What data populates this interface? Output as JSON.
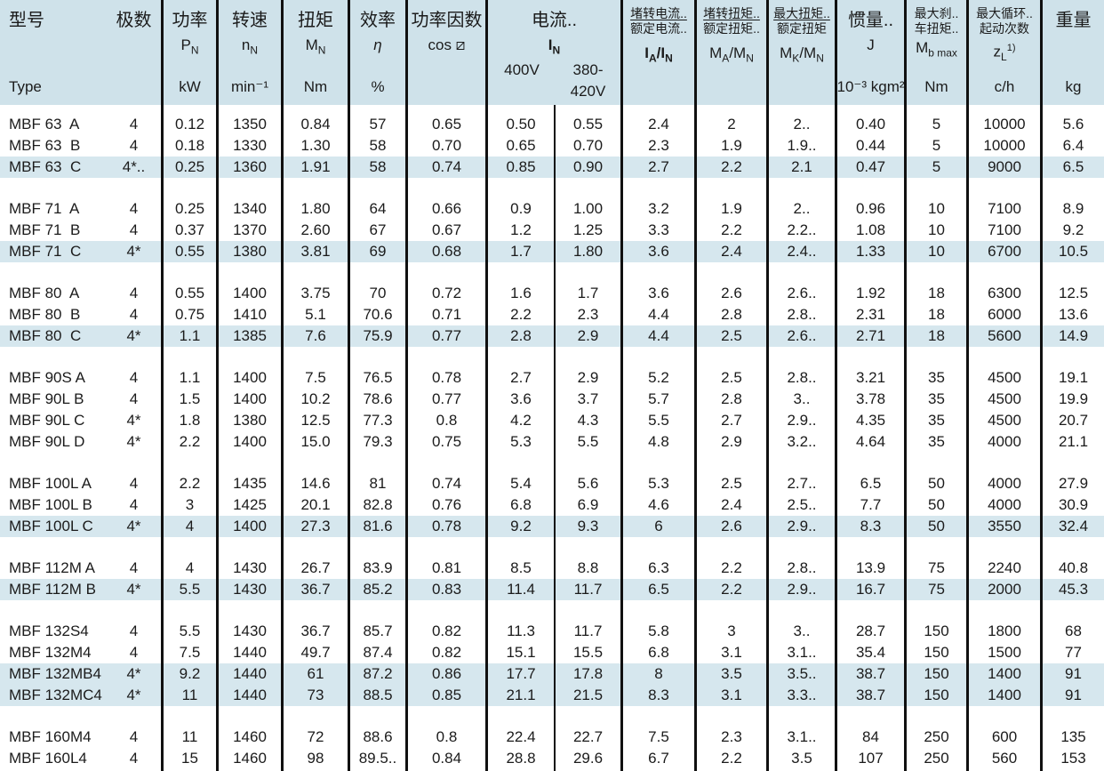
{
  "colors": {
    "header_background": "#cfe2ea",
    "row_highlight": "#d6e7ee",
    "grid_line": "#101010",
    "text": "#1b1b1b"
  },
  "table": {
    "header": {
      "type": {
        "zh": "型号",
        "en": "Type"
      },
      "poles": {
        "zh": "极数"
      },
      "power": {
        "zh": "功率",
        "sym": [
          [
            "P",
            0
          ],
          [
            "N",
            1
          ]
        ],
        "unit": "kW"
      },
      "speed": {
        "zh": "转速",
        "sym": [
          [
            "n",
            0
          ],
          [
            "N",
            1
          ]
        ],
        "unit": "min⁻¹"
      },
      "torque": {
        "zh": "扭矩",
        "sym": [
          [
            "M",
            0
          ],
          [
            "N",
            1
          ]
        ],
        "unit": "Nm"
      },
      "efficiency": {
        "zh": "效率",
        "sym": [
          [
            "η",
            0
          ]
        ],
        "unit": "%"
      },
      "power_factor": {
        "zh": "功率因数",
        "sym": [
          [
            "cos ⧄",
            0
          ]
        ],
        "unit": ""
      },
      "current": {
        "zh": "电流..",
        "sym": [
          [
            "I",
            0
          ],
          [
            "N",
            1
          ]
        ],
        "voltage_1": "400V",
        "voltage_2": "380-420V"
      },
      "locked_rotor_current": {
        "zh_num": "堵转电流..",
        "zh_den": "额定电流..",
        "sym": [
          [
            "I",
            0
          ],
          [
            "A",
            1
          ],
          [
            "/I",
            0
          ],
          [
            "N",
            1
          ]
        ]
      },
      "locked_rotor_torque": {
        "zh_num": "堵转扭矩..",
        "zh_den": "额定扭矩..",
        "sym": [
          [
            "M",
            0
          ],
          [
            "A",
            1
          ],
          [
            "/M",
            0
          ],
          [
            "N",
            1
          ]
        ]
      },
      "breakdown_torque": {
        "zh_num": "最大扭矩..",
        "zh_den": "额定扭矩",
        "sym": [
          [
            "M",
            0
          ],
          [
            "K",
            1
          ],
          [
            "/M",
            0
          ],
          [
            "N",
            1
          ]
        ]
      },
      "inertia": {
        "zh": "惯量..",
        "sym": [
          [
            "J",
            0
          ]
        ],
        "unit": "10⁻³ kgm²"
      },
      "brake_torque": {
        "zh_1": "最大刹..",
        "zh_2": "车扭矩..",
        "sym": [
          [
            "M",
            0
          ],
          [
            "b max",
            1
          ]
        ],
        "unit": "Nm"
      },
      "starts_per_hour": {
        "zh_1": "最大循环..",
        "zh_2": "起动次数",
        "sym": [
          [
            "z",
            0
          ],
          [
            "L",
            1
          ],
          [
            "1)",
            2
          ]
        ],
        "unit": "c/h"
      },
      "weight": {
        "zh": "重量",
        "unit": "kg"
      }
    },
    "groups": [
      {
        "rows": [
          {
            "highlight": false,
            "cells": [
              "MBF 63  A",
              "4",
              "0.12",
              "1350",
              "0.84",
              "57",
              "0.65",
              "0.50",
              "0.55",
              "2.4",
              "2",
              "2..",
              "0.40",
              "5",
              "10000",
              "5.6"
            ]
          },
          {
            "highlight": false,
            "cells": [
              "MBF 63  B",
              "4",
              "0.18",
              "1330",
              "1.30",
              "58",
              "0.70",
              "0.65",
              "0.70",
              "2.3",
              "1.9",
              "1.9..",
              "0.44",
              "5",
              "10000",
              "6.4"
            ]
          },
          {
            "highlight": true,
            "cells": [
              "MBF 63  C",
              "4*..",
              "0.25",
              "1360",
              "1.91",
              "58",
              "0.74",
              "0.85",
              "0.90",
              "2.7",
              "2.2",
              "2.1",
              "0.47",
              "5",
              "9000",
              "6.5"
            ]
          }
        ]
      },
      {
        "rows": [
          {
            "highlight": false,
            "cells": [
              "MBF 71  A",
              "4",
              "0.25",
              "1340",
              "1.80",
              "64",
              "0.66",
              "0.9",
              "1.00",
              "3.2",
              "1.9",
              "2..",
              "0.96",
              "10",
              "7100",
              "8.9"
            ]
          },
          {
            "highlight": false,
            "cells": [
              "MBF 71  B",
              "4",
              "0.37",
              "1370",
              "2.60",
              "67",
              "0.67",
              "1.2",
              "1.25",
              "3.3",
              "2.2",
              "2.2..",
              "1.08",
              "10",
              "7100",
              "9.2"
            ]
          },
          {
            "highlight": true,
            "cells": [
              "MBF 71  C",
              "4*",
              "0.55",
              "1380",
              "3.81",
              "69",
              "0.68",
              "1.7",
              "1.80",
              "3.6",
              "2.4",
              "2.4..",
              "1.33",
              "10",
              "6700",
              "10.5"
            ]
          }
        ]
      },
      {
        "rows": [
          {
            "highlight": false,
            "cells": [
              "MBF 80  A",
              "4",
              "0.55",
              "1400",
              "3.75",
              "70",
              "0.72",
              "1.6",
              "1.7",
              "3.6",
              "2.6",
              "2.6..",
              "1.92",
              "18",
              "6300",
              "12.5"
            ]
          },
          {
            "highlight": false,
            "cells": [
              "MBF 80  B",
              "4",
              "0.75",
              "1410",
              "5.1",
              "70.6",
              "0.71",
              "2.2",
              "2.3",
              "4.4",
              "2.8",
              "2.8..",
              "2.31",
              "18",
              "6000",
              "13.6"
            ]
          },
          {
            "highlight": true,
            "cells": [
              "MBF 80  C",
              "4*",
              "1.1",
              "1385",
              "7.6",
              "75.9",
              "0.77",
              "2.8",
              "2.9",
              "4.4",
              "2.5",
              "2.6..",
              "2.71",
              "18",
              "5600",
              "14.9"
            ]
          }
        ]
      },
      {
        "rows": [
          {
            "highlight": false,
            "cells": [
              "MBF 90S A",
              "4",
              "1.1",
              "1400",
              "7.5",
              "76.5",
              "0.78",
              "2.7",
              "2.9",
              "5.2",
              "2.5",
              "2.8..",
              "3.21",
              "35",
              "4500",
              "19.1"
            ]
          },
          {
            "highlight": false,
            "cells": [
              "MBF 90L B",
              "4",
              "1.5",
              "1400",
              "10.2",
              "78.6",
              "0.77",
              "3.6",
              "3.7",
              "5.7",
              "2.8",
              "3..",
              "3.78",
              "35",
              "4500",
              "19.9"
            ]
          },
          {
            "highlight": false,
            "cells": [
              "MBF 90L C",
              "4*",
              "1.8",
              "1380",
              "12.5",
              "77.3",
              "0.8",
              "4.2",
              "4.3",
              "5.5",
              "2.7",
              "2.9..",
              "4.35",
              "35",
              "4500",
              "20.7"
            ]
          },
          {
            "highlight": false,
            "cells": [
              "MBF 90L D",
              "4*",
              "2.2",
              "1400",
              "15.0",
              "79.3",
              "0.75",
              "5.3",
              "5.5",
              "4.8",
              "2.9",
              "3.2..",
              "4.64",
              "35",
              "4000",
              "21.1"
            ]
          }
        ]
      },
      {
        "rows": [
          {
            "highlight": false,
            "cells": [
              "MBF 100L A",
              "4",
              "2.2",
              "1435",
              "14.6",
              "81",
              "0.74",
              "5.4",
              "5.6",
              "5.3",
              "2.5",
              "2.7..",
              "6.5",
              "50",
              "4000",
              "27.9"
            ]
          },
          {
            "highlight": false,
            "cells": [
              "MBF 100L B",
              "4",
              "3",
              "1425",
              "20.1",
              "82.8",
              "0.76",
              "6.8",
              "6.9",
              "4.6",
              "2.4",
              "2.5..",
              "7.7",
              "50",
              "4000",
              "30.9"
            ]
          },
          {
            "highlight": true,
            "cells": [
              "MBF 100L C",
              "4*",
              "4",
              "1400",
              "27.3",
              "81.6",
              "0.78",
              "9.2",
              "9.3",
              "6",
              "2.6",
              "2.9..",
              "8.3",
              "50",
              "3550",
              "32.4"
            ]
          }
        ]
      },
      {
        "rows": [
          {
            "highlight": false,
            "cells": [
              "MBF 112M A",
              "4",
              "4",
              "1430",
              "26.7",
              "83.9",
              "0.81",
              "8.5",
              "8.8",
              "6.3",
              "2.2",
              "2.8..",
              "13.9",
              "75",
              "2240",
              "40.8"
            ]
          },
          {
            "highlight": true,
            "cells": [
              "MBF 112M B",
              "4*",
              "5.5",
              "1430",
              "36.7",
              "85.2",
              "0.83",
              "11.4",
              "11.7",
              "6.5",
              "2.2",
              "2.9..",
              "16.7",
              "75",
              "2000",
              "45.3"
            ]
          }
        ]
      },
      {
        "rows": [
          {
            "highlight": false,
            "cells": [
              "MBF 132S4",
              "4",
              "5.5",
              "1430",
              "36.7",
              "85.7",
              "0.82",
              "11.3",
              "11.7",
              "5.8",
              "3",
              "3..",
              "28.7",
              "150",
              "1800",
              "68"
            ]
          },
          {
            "highlight": false,
            "cells": [
              "MBF 132M4",
              "4",
              "7.5",
              "1440",
              "49.7",
              "87.4",
              "0.82",
              "15.1",
              "15.5",
              "6.8",
              "3.1",
              "3.1..",
              "35.4",
              "150",
              "1500",
              "77"
            ]
          },
          {
            "highlight": true,
            "cells": [
              "MBF 132MB4",
              "4*",
              "9.2",
              "1440",
              "61",
              "87.2",
              "0.86",
              "17.7",
              "17.8",
              "8",
              "3.5",
              "3.5..",
              "38.7",
              "150",
              "1400",
              "91"
            ]
          },
          {
            "highlight": true,
            "cells": [
              "MBF 132MC4",
              "4*",
              "11",
              "1440",
              "73",
              "88.5",
              "0.85",
              "21.1",
              "21.5",
              "8.3",
              "3.1",
              "3.3..",
              "38.7",
              "150",
              "1400",
              "91"
            ]
          }
        ]
      },
      {
        "rows": [
          {
            "highlight": false,
            "cells": [
              "MBF 160M4",
              "4",
              "11",
              "1460",
              "72",
              "88.6",
              "0.8",
              "22.4",
              "22.7",
              "7.5",
              "2.3",
              "3.1..",
              "84",
              "250",
              "600",
              "135"
            ]
          },
          {
            "highlight": false,
            "cells": [
              "MBF 160L4",
              "4",
              "15",
              "1460",
              "98",
              "89.5..",
              "0.84",
              "28.8",
              "29.6",
              "6.7",
              "2.2",
              "3.5",
              "107",
              "250",
              "560",
              "153"
            ]
          }
        ]
      }
    ]
  }
}
